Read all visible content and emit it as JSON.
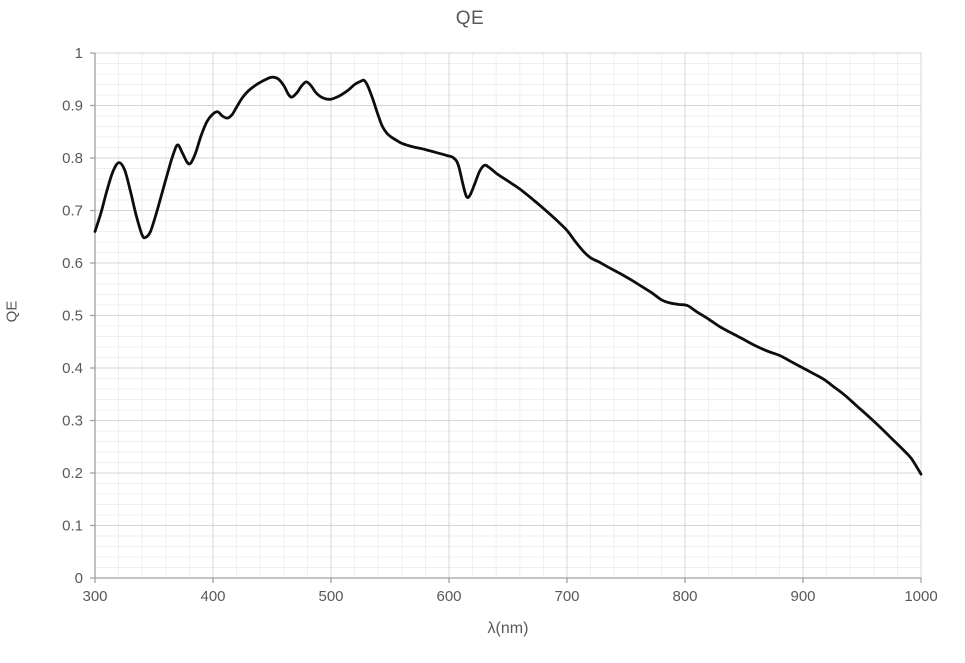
{
  "chart_data": {
    "type": "line",
    "title": "QE",
    "xlabel": "λ(nm)",
    "ylabel": "QE",
    "xlim": [
      300,
      1000
    ],
    "ylim": [
      0,
      1
    ],
    "x_tick_labels": [
      "300",
      "400",
      "500",
      "600",
      "700",
      "800",
      "900",
      "1000"
    ],
    "y_tick_labels": [
      "0",
      "0.1",
      "0.2",
      "0.3",
      "0.4",
      "0.5",
      "0.6",
      "0.7",
      "0.8",
      "0.9",
      "1"
    ],
    "x_minor_step": 20,
    "y_minor_step": 0.02,
    "grid": "major-and-minor",
    "legend": "none",
    "series": [
      {
        "name": "QE",
        "points": [
          [
            300,
            0.66
          ],
          [
            305,
            0.695
          ],
          [
            310,
            0.737
          ],
          [
            315,
            0.773
          ],
          [
            320,
            0.791
          ],
          [
            325,
            0.778
          ],
          [
            330,
            0.737
          ],
          [
            335,
            0.69
          ],
          [
            340,
            0.653
          ],
          [
            343,
            0.649
          ],
          [
            347,
            0.66
          ],
          [
            352,
            0.695
          ],
          [
            357,
            0.735
          ],
          [
            362,
            0.775
          ],
          [
            366,
            0.805
          ],
          [
            370,
            0.825
          ],
          [
            374,
            0.81
          ],
          [
            378,
            0.792
          ],
          [
            381,
            0.79
          ],
          [
            385,
            0.808
          ],
          [
            390,
            0.843
          ],
          [
            395,
            0.87
          ],
          [
            400,
            0.884
          ],
          [
            404,
            0.888
          ],
          [
            408,
            0.88
          ],
          [
            412,
            0.876
          ],
          [
            416,
            0.882
          ],
          [
            420,
            0.897
          ],
          [
            425,
            0.915
          ],
          [
            430,
            0.928
          ],
          [
            435,
            0.937
          ],
          [
            440,
            0.944
          ],
          [
            445,
            0.95
          ],
          [
            450,
            0.954
          ],
          [
            455,
            0.951
          ],
          [
            460,
            0.938
          ],
          [
            464,
            0.921
          ],
          [
            467,
            0.916
          ],
          [
            471,
            0.924
          ],
          [
            475,
            0.937
          ],
          [
            479,
            0.945
          ],
          [
            483,
            0.938
          ],
          [
            487,
            0.925
          ],
          [
            491,
            0.917
          ],
          [
            495,
            0.913
          ],
          [
            500,
            0.912
          ],
          [
            505,
            0.916
          ],
          [
            510,
            0.922
          ],
          [
            515,
            0.93
          ],
          [
            520,
            0.94
          ],
          [
            525,
            0.946
          ],
          [
            528,
            0.948
          ],
          [
            531,
            0.938
          ],
          [
            535,
            0.915
          ],
          [
            539,
            0.888
          ],
          [
            543,
            0.863
          ],
          [
            547,
            0.848
          ],
          [
            551,
            0.84
          ],
          [
            556,
            0.833
          ],
          [
            561,
            0.827
          ],
          [
            570,
            0.821
          ],
          [
            580,
            0.816
          ],
          [
            590,
            0.81
          ],
          [
            598,
            0.805
          ],
          [
            604,
            0.8
          ],
          [
            608,
            0.786
          ],
          [
            612,
            0.748
          ],
          [
            615,
            0.726
          ],
          [
            618,
            0.73
          ],
          [
            622,
            0.752
          ],
          [
            626,
            0.775
          ],
          [
            630,
            0.786
          ],
          [
            634,
            0.782
          ],
          [
            640,
            0.771
          ],
          [
            650,
            0.756
          ],
          [
            660,
            0.741
          ],
          [
            670,
            0.723
          ],
          [
            680,
            0.704
          ],
          [
            690,
            0.684
          ],
          [
            700,
            0.662
          ],
          [
            707,
            0.641
          ],
          [
            714,
            0.622
          ],
          [
            720,
            0.61
          ],
          [
            727,
            0.602
          ],
          [
            735,
            0.592
          ],
          [
            745,
            0.58
          ],
          [
            755,
            0.567
          ],
          [
            765,
            0.553
          ],
          [
            772,
            0.543
          ],
          [
            780,
            0.53
          ],
          [
            787,
            0.524
          ],
          [
            795,
            0.521
          ],
          [
            802,
            0.519
          ],
          [
            810,
            0.507
          ],
          [
            820,
            0.493
          ],
          [
            830,
            0.478
          ],
          [
            840,
            0.466
          ],
          [
            850,
            0.454
          ],
          [
            860,
            0.442
          ],
          [
            870,
            0.432
          ],
          [
            880,
            0.424
          ],
          [
            890,
            0.412
          ],
          [
            900,
            0.4
          ],
          [
            910,
            0.388
          ],
          [
            918,
            0.378
          ],
          [
            925,
            0.366
          ],
          [
            935,
            0.349
          ],
          [
            945,
            0.329
          ],
          [
            955,
            0.309
          ],
          [
            965,
            0.288
          ],
          [
            975,
            0.266
          ],
          [
            985,
            0.244
          ],
          [
            992,
            0.227
          ],
          [
            1000,
            0.198
          ]
        ]
      }
    ],
    "colors": {
      "line": "#0d0d0d",
      "title_text": "#595959",
      "tick_text": "#595959",
      "axis_line": "#a0a0a0",
      "grid_major": "#d6d6d6",
      "grid_minor": "#efefef",
      "background": "#ffffff"
    },
    "line_width": 2.8
  }
}
